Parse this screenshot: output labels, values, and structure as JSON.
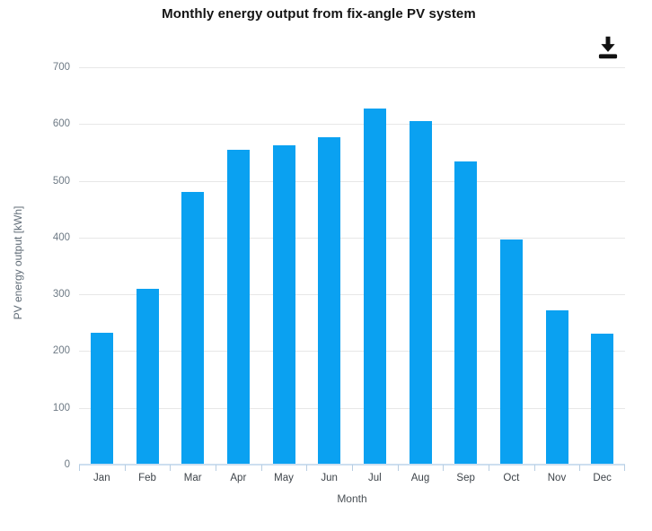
{
  "chart_data": {
    "type": "bar",
    "title": "Monthly energy output from fix-angle PV system",
    "categories": [
      "Jan",
      "Feb",
      "Mar",
      "Apr",
      "May",
      "Jun",
      "Jul",
      "Aug",
      "Sep",
      "Oct",
      "Nov",
      "Dec"
    ],
    "values": [
      232,
      310,
      480,
      554,
      562,
      577,
      627,
      605,
      534,
      397,
      272,
      230
    ],
    "xlabel": "Month",
    "ylabel": "PV energy output [kWh]",
    "ylim": [
      0,
      700
    ],
    "ytick_step": 100,
    "grid": true,
    "legend": "none",
    "bar_color": "#0aa1f1"
  },
  "toolbar": {
    "download_icon": "download-icon"
  },
  "colors": {
    "bar": "#0aa1f1",
    "gridline": "#e7e7e7",
    "axis_line": "#cddff0",
    "axis_tick": "#b7cde2",
    "y_label_text": "#6e7a85",
    "x_label_text": "#3d4349",
    "title_text": "#141414",
    "icon": "#111111",
    "background": "#ffffff"
  }
}
